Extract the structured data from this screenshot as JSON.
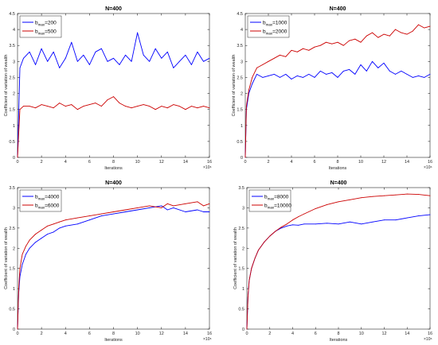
{
  "chart_data": [
    {
      "type": "line",
      "title": "N=400",
      "xlabel": "Iterations",
      "ylabel": "Coefficient of variation of wealth",
      "xlim": [
        0,
        16
      ],
      "ylim": [
        0,
        4.5
      ],
      "x_exponent_label": "×10⁶",
      "x_ticks": [
        "0",
        "2",
        "4",
        "6",
        "8",
        "10",
        "12",
        "14",
        "16"
      ],
      "y_ticks": [
        "0",
        "0.5",
        "1",
        "1.5",
        "2",
        "2.5",
        "3",
        "3.5",
        "4",
        "4.5"
      ],
      "legend_position": "top-left",
      "series": [
        {
          "name": "b_max=200",
          "sub": "max",
          "base": "b",
          "suffix": "=200",
          "color": "#0000ff",
          "x": [
            0,
            0.2,
            0.5,
            1,
            1.5,
            2,
            2.5,
            3,
            3.5,
            4,
            4.5,
            5,
            5.5,
            6,
            6.5,
            7,
            7.5,
            8,
            8.5,
            9,
            9.5,
            10,
            10.5,
            11,
            11.5,
            12,
            12.5,
            13,
            13.5,
            14,
            14.5,
            15,
            15.5,
            16
          ],
          "values": [
            0,
            2.8,
            3.1,
            3.3,
            2.9,
            3.4,
            3.0,
            3.3,
            2.8,
            3.1,
            3.6,
            3.0,
            3.2,
            2.9,
            3.3,
            3.4,
            3.0,
            3.1,
            2.9,
            3.2,
            3.0,
            3.9,
            3.2,
            3.0,
            3.4,
            3.1,
            3.3,
            2.8,
            3.0,
            3.2,
            2.9,
            3.3,
            3.0,
            3.1
          ]
        },
        {
          "name": "b_max=500",
          "sub": "max",
          "base": "b",
          "suffix": "=500",
          "color": "#cc0000",
          "x": [
            0,
            0.2,
            0.5,
            1,
            1.5,
            2,
            2.5,
            3,
            3.5,
            4,
            4.5,
            5,
            5.5,
            6,
            6.5,
            7,
            7.5,
            8,
            8.5,
            9,
            9.5,
            10,
            10.5,
            11,
            11.5,
            12,
            12.5,
            13,
            13.5,
            14,
            14.5,
            15,
            15.5,
            16
          ],
          "values": [
            0,
            1.5,
            1.6,
            1.6,
            1.55,
            1.65,
            1.6,
            1.55,
            1.7,
            1.6,
            1.65,
            1.5,
            1.6,
            1.65,
            1.7,
            1.6,
            1.8,
            1.9,
            1.7,
            1.6,
            1.55,
            1.6,
            1.65,
            1.6,
            1.5,
            1.6,
            1.55,
            1.65,
            1.6,
            1.5,
            1.6,
            1.55,
            1.6,
            1.55
          ]
        }
      ]
    },
    {
      "type": "line",
      "title": "N=400",
      "xlabel": "Iterations",
      "ylabel": "Coefficient of variation of wealth",
      "xlim": [
        0,
        16
      ],
      "ylim": [
        0,
        4.5
      ],
      "x_exponent_label": "×10⁶",
      "x_ticks": [
        "0",
        "2",
        "4",
        "6",
        "8",
        "10",
        "12",
        "14",
        "16"
      ],
      "y_ticks": [
        "0",
        "0.5",
        "1",
        "1.5",
        "2",
        "2.5",
        "3",
        "3.5",
        "4",
        "4.5"
      ],
      "legend_position": "top-left",
      "series": [
        {
          "name": "b_max=1000",
          "sub": "max",
          "base": "b",
          "suffix": "=1000",
          "color": "#0000ff",
          "x": [
            0,
            0.1,
            0.3,
            0.6,
            1,
            1.5,
            2,
            2.5,
            3,
            3.5,
            4,
            4.5,
            5,
            5.5,
            6,
            6.5,
            7,
            7.5,
            8,
            8.5,
            9,
            9.5,
            10,
            10.5,
            11,
            11.5,
            12,
            12.5,
            13,
            13.5,
            14,
            14.5,
            15,
            15.5,
            16
          ],
          "values": [
            0,
            1.5,
            2.0,
            2.3,
            2.6,
            2.5,
            2.55,
            2.6,
            2.5,
            2.6,
            2.45,
            2.55,
            2.5,
            2.6,
            2.5,
            2.7,
            2.6,
            2.65,
            2.5,
            2.7,
            2.75,
            2.6,
            2.9,
            2.7,
            3.0,
            2.8,
            2.95,
            2.7,
            2.6,
            2.7,
            2.6,
            2.5,
            2.55,
            2.5,
            2.6
          ]
        },
        {
          "name": "b_max=2000",
          "sub": "max",
          "base": "b",
          "suffix": "=2000",
          "color": "#cc0000",
          "x": [
            0,
            0.1,
            0.3,
            0.6,
            1,
            1.5,
            2,
            2.5,
            3,
            3.5,
            4,
            4.5,
            5,
            5.5,
            6,
            6.5,
            7,
            7.5,
            8,
            8.5,
            9,
            9.5,
            10,
            10.5,
            11,
            11.5,
            12,
            12.5,
            13,
            13.5,
            14,
            14.5,
            15,
            15.5,
            16
          ],
          "values": [
            0,
            1.6,
            2.1,
            2.5,
            2.8,
            2.9,
            3.0,
            3.1,
            3.2,
            3.15,
            3.35,
            3.3,
            3.4,
            3.35,
            3.45,
            3.5,
            3.6,
            3.55,
            3.6,
            3.5,
            3.65,
            3.7,
            3.6,
            3.8,
            3.9,
            3.75,
            3.85,
            3.8,
            4.0,
            3.9,
            3.85,
            3.95,
            4.15,
            4.05,
            4.1
          ]
        }
      ]
    },
    {
      "type": "line",
      "title": "N=400",
      "xlabel": "Iterations",
      "ylabel": "Coefficient of variation of wealth",
      "xlim": [
        0,
        16
      ],
      "ylim": [
        0,
        3.5
      ],
      "x_exponent_label": "×10⁶",
      "x_ticks": [
        "0",
        "2",
        "4",
        "6",
        "8",
        "10",
        "12",
        "14",
        "16"
      ],
      "y_ticks": [
        "0",
        "0.5",
        "1",
        "1.5",
        "2",
        "2.5",
        "3",
        "3.5"
      ],
      "legend_position": "top-left",
      "series": [
        {
          "name": "b_max=4000",
          "sub": "max",
          "base": "b",
          "suffix": "=4000",
          "color": "#0000ff",
          "x": [
            0,
            0.1,
            0.2,
            0.4,
            0.7,
            1,
            1.5,
            2,
            2.5,
            3,
            3.5,
            4,
            5,
            6,
            7,
            8,
            9,
            10,
            11,
            12,
            12.5,
            13,
            14,
            15,
            15.5,
            16
          ],
          "values": [
            0,
            0.9,
            1.3,
            1.6,
            1.85,
            2.0,
            2.15,
            2.25,
            2.35,
            2.4,
            2.5,
            2.55,
            2.6,
            2.7,
            2.8,
            2.85,
            2.9,
            2.95,
            3.0,
            3.05,
            2.95,
            3.0,
            2.9,
            2.95,
            2.9,
            2.9
          ]
        },
        {
          "name": "b_max=6000",
          "sub": "max",
          "base": "b",
          "suffix": "=6000",
          "color": "#cc0000",
          "x": [
            0,
            0.1,
            0.2,
            0.4,
            0.7,
            1,
            1.5,
            2,
            2.5,
            3,
            3.5,
            4,
            5,
            6,
            7,
            8,
            9,
            10,
            11,
            12,
            12.5,
            13,
            14,
            15,
            15.5,
            16
          ],
          "values": [
            0,
            1.0,
            1.5,
            1.85,
            2.05,
            2.2,
            2.35,
            2.45,
            2.55,
            2.6,
            2.65,
            2.7,
            2.75,
            2.8,
            2.85,
            2.9,
            2.95,
            3.0,
            3.05,
            3.0,
            3.1,
            3.05,
            3.1,
            3.15,
            3.05,
            3.1
          ]
        }
      ]
    },
    {
      "type": "line",
      "title": "N=400",
      "xlabel": "Iterations",
      "ylabel": "Coefficient of variation of wealth",
      "xlim": [
        0,
        16
      ],
      "ylim": [
        0,
        3.5
      ],
      "x_exponent_label": "×10⁶",
      "x_ticks": [
        "0",
        "2",
        "4",
        "6",
        "8",
        "10",
        "12",
        "14",
        "16"
      ],
      "y_ticks": [
        "0",
        "0.5",
        "1",
        "1.5",
        "2",
        "2.5",
        "3",
        "3.5"
      ],
      "legend_position": "top-left",
      "series": [
        {
          "name": "b_max=8000",
          "sub": "max",
          "base": "b",
          "suffix": "=8000",
          "color": "#0000ff",
          "x": [
            0,
            0.1,
            0.2,
            0.4,
            0.7,
            1,
            1.5,
            2,
            2.5,
            3,
            3.5,
            4,
            4.5,
            5,
            6,
            7,
            8,
            9,
            10,
            11,
            12,
            13,
            14,
            15,
            16
          ],
          "values": [
            0,
            0.8,
            1.2,
            1.5,
            1.75,
            1.95,
            2.15,
            2.3,
            2.42,
            2.5,
            2.55,
            2.58,
            2.57,
            2.6,
            2.6,
            2.62,
            2.6,
            2.65,
            2.6,
            2.65,
            2.7,
            2.7,
            2.75,
            2.8,
            2.83
          ]
        },
        {
          "name": "b_max=10000",
          "sub": "max",
          "base": "b",
          "suffix": "=10000",
          "color": "#cc0000",
          "x": [
            0,
            0.1,
            0.2,
            0.4,
            0.7,
            1,
            1.5,
            2,
            2.5,
            3,
            3.5,
            4,
            4.5,
            5,
            6,
            7,
            8,
            9,
            10,
            11,
            12,
            13,
            14,
            15,
            16
          ],
          "values": [
            0,
            0.8,
            1.2,
            1.5,
            1.75,
            1.95,
            2.15,
            2.3,
            2.42,
            2.52,
            2.6,
            2.7,
            2.78,
            2.85,
            2.98,
            3.08,
            3.15,
            3.2,
            3.25,
            3.28,
            3.3,
            3.32,
            3.34,
            3.33,
            3.3
          ]
        }
      ]
    }
  ]
}
